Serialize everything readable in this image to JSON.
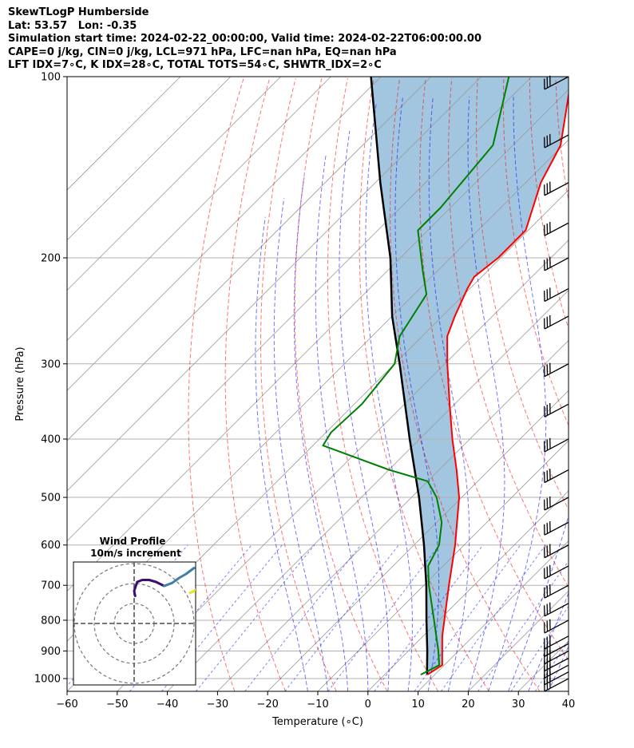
{
  "header": {
    "line1": "SkewTLogP Humberside",
    "line2": "Lat: 53.57   Lon: -0.35",
    "line3": "Simulation start time: 2024-02-22_00:00:00, Valid time: 2024-02-22T06:00:00.00",
    "line4": "CAPE=0 j/kg, CIN=0 j/kg, LCL=971 hPa, LFC=nan hPa, EQ=nan hPa",
    "line5": "LFT IDX=7∘C, K IDX=28∘C, TOTAL TOTS=54∘C, SHWTR_IDX=2∘C"
  },
  "colors": {
    "temperature": "#ff0000",
    "dewpoint": "#008000",
    "parcel": "#000000",
    "cape_shade": "#a2c6e0",
    "dry_adiabat": "#ff0000",
    "moist_adiabat": "#0000ff",
    "mixing_ratio": "#0000ff",
    "isotherm": "#9a9a9a",
    "hodo_low": "#3b0f70",
    "hodo_mid": "#3e7ea8",
    "hodo_high": "#e7e419"
  },
  "chart_data": [
    {
      "type": "line",
      "title": "",
      "xlabel": "Temperature (∘C)",
      "ylabel": "Pressure (hPa)",
      "xlim": [
        -60,
        40
      ],
      "ylim": [
        1000,
        100
      ],
      "y_scale": "log",
      "skew": "45deg",
      "grid": true,
      "x_ticks": [
        "−60",
        "−50",
        "−40",
        "−30",
        "−20",
        "−10",
        "0",
        "10",
        "20",
        "30",
        "40"
      ],
      "y_ticks": [
        "100",
        "200",
        "300",
        "400",
        "500",
        "600",
        "700",
        "800",
        "900",
        "1000"
      ],
      "series": [
        {
          "name": "Temperature",
          "points": [
            {
              "p": 985,
              "t": 8.5
            },
            {
              "p": 950,
              "t": 9.6
            },
            {
              "p": 925,
              "t": 8.2
            },
            {
              "p": 850,
              "t": 3.8
            },
            {
              "p": 700,
              "t": -5.0
            },
            {
              "p": 600,
              "t": -11.8
            },
            {
              "p": 500,
              "t": -20.5
            },
            {
              "p": 450,
              "t": -26.5
            },
            {
              "p": 400,
              "t": -33.5
            },
            {
              "p": 350,
              "t": -41.0
            },
            {
              "p": 300,
              "t": -49.5
            },
            {
              "p": 270,
              "t": -55.0
            },
            {
              "p": 250,
              "t": -57.5
            },
            {
              "p": 225,
              "t": -60.5
            },
            {
              "p": 215,
              "t": -61.5
            },
            {
              "p": 200,
              "t": -60.5
            },
            {
              "p": 180,
              "t": -60.5
            },
            {
              "p": 150,
              "t": -67.0
            },
            {
              "p": 130,
              "t": -70.5
            },
            {
              "p": 100,
              "t": -82.0
            }
          ]
        },
        {
          "name": "Dewpoint",
          "points": [
            {
              "p": 985,
              "t": 7.2
            },
            {
              "p": 950,
              "t": 9.0
            },
            {
              "p": 900,
              "t": 6.0
            },
            {
              "p": 800,
              "t": -1.0
            },
            {
              "p": 700,
              "t": -9.0
            },
            {
              "p": 650,
              "t": -13.0
            },
            {
              "p": 600,
              "t": -15.0
            },
            {
              "p": 550,
              "t": -19.0
            },
            {
              "p": 500,
              "t": -25.0
            },
            {
              "p": 470,
              "t": -30.0
            },
            {
              "p": 450,
              "t": -40.0
            },
            {
              "p": 410,
              "t": -58.0
            },
            {
              "p": 390,
              "t": -59.0
            },
            {
              "p": 350,
              "t": -58.5
            },
            {
              "p": 300,
              "t": -60.0
            },
            {
              "p": 270,
              "t": -64.5
            },
            {
              "p": 230,
              "t": -67.5
            },
            {
              "p": 210,
              "t": -73.0
            },
            {
              "p": 180,
              "t": -82.0
            },
            {
              "p": 165,
              "t": -82.0
            },
            {
              "p": 130,
              "t": -84.0
            },
            {
              "p": 100,
              "t": -94.5
            }
          ]
        },
        {
          "name": "Parcel",
          "points": [
            {
              "p": 985,
              "t": 8.5
            },
            {
              "p": 971,
              "t": 7.7
            },
            {
              "p": 900,
              "t": 3.8
            },
            {
              "p": 800,
              "t": -2.5
            },
            {
              "p": 700,
              "t": -9.5
            },
            {
              "p": 600,
              "t": -18.0
            },
            {
              "p": 500,
              "t": -28.5
            },
            {
              "p": 400,
              "t": -42.0
            },
            {
              "p": 300,
              "t": -59.0
            },
            {
              "p": 250,
              "t": -70.0
            },
            {
              "p": 200,
              "t": -82.0
            },
            {
              "p": 150,
              "t": -99.0
            },
            {
              "p": 100,
              "t": -122.0
            }
          ]
        }
      ],
      "wind_barbs": [
        {
          "p": 1000
        },
        {
          "p": 975
        },
        {
          "p": 950
        },
        {
          "p": 925
        },
        {
          "p": 900
        },
        {
          "p": 875
        },
        {
          "p": 850
        },
        {
          "p": 800
        },
        {
          "p": 750
        },
        {
          "p": 700
        },
        {
          "p": 650
        },
        {
          "p": 600
        },
        {
          "p": 550
        },
        {
          "p": 500
        },
        {
          "p": 450
        },
        {
          "p": 400
        },
        {
          "p": 350
        },
        {
          "p": 300
        },
        {
          "p": 250
        },
        {
          "p": 225
        },
        {
          "p": 200
        },
        {
          "p": 175
        },
        {
          "p": 150
        },
        {
          "p": 125
        },
        {
          "p": 100
        }
      ]
    },
    {
      "type": "line",
      "title": "Wind Profile",
      "subtitle": "10m/s increment",
      "rings": 3,
      "series": [
        {
          "name": "",
          "points": [
            [
              1,
              2
            ],
            [
              0,
              7
            ],
            [
              3,
              16
            ],
            [
              8,
              18
            ],
            [
              15,
              18
            ],
            [
              22,
              16
            ],
            [
              30,
              12
            ]
          ]
        },
        {
          "name": "",
          "points": [
            [
              30,
              12
            ],
            [
              38,
              15
            ],
            [
              45,
              20
            ],
            [
              52,
              24
            ],
            [
              60,
              30
            ]
          ]
        },
        {
          "name": "",
          "points": [
            [
              56,
              5
            ],
            [
              60,
              7
            ],
            [
              64,
              10
            ]
          ]
        }
      ]
    }
  ]
}
